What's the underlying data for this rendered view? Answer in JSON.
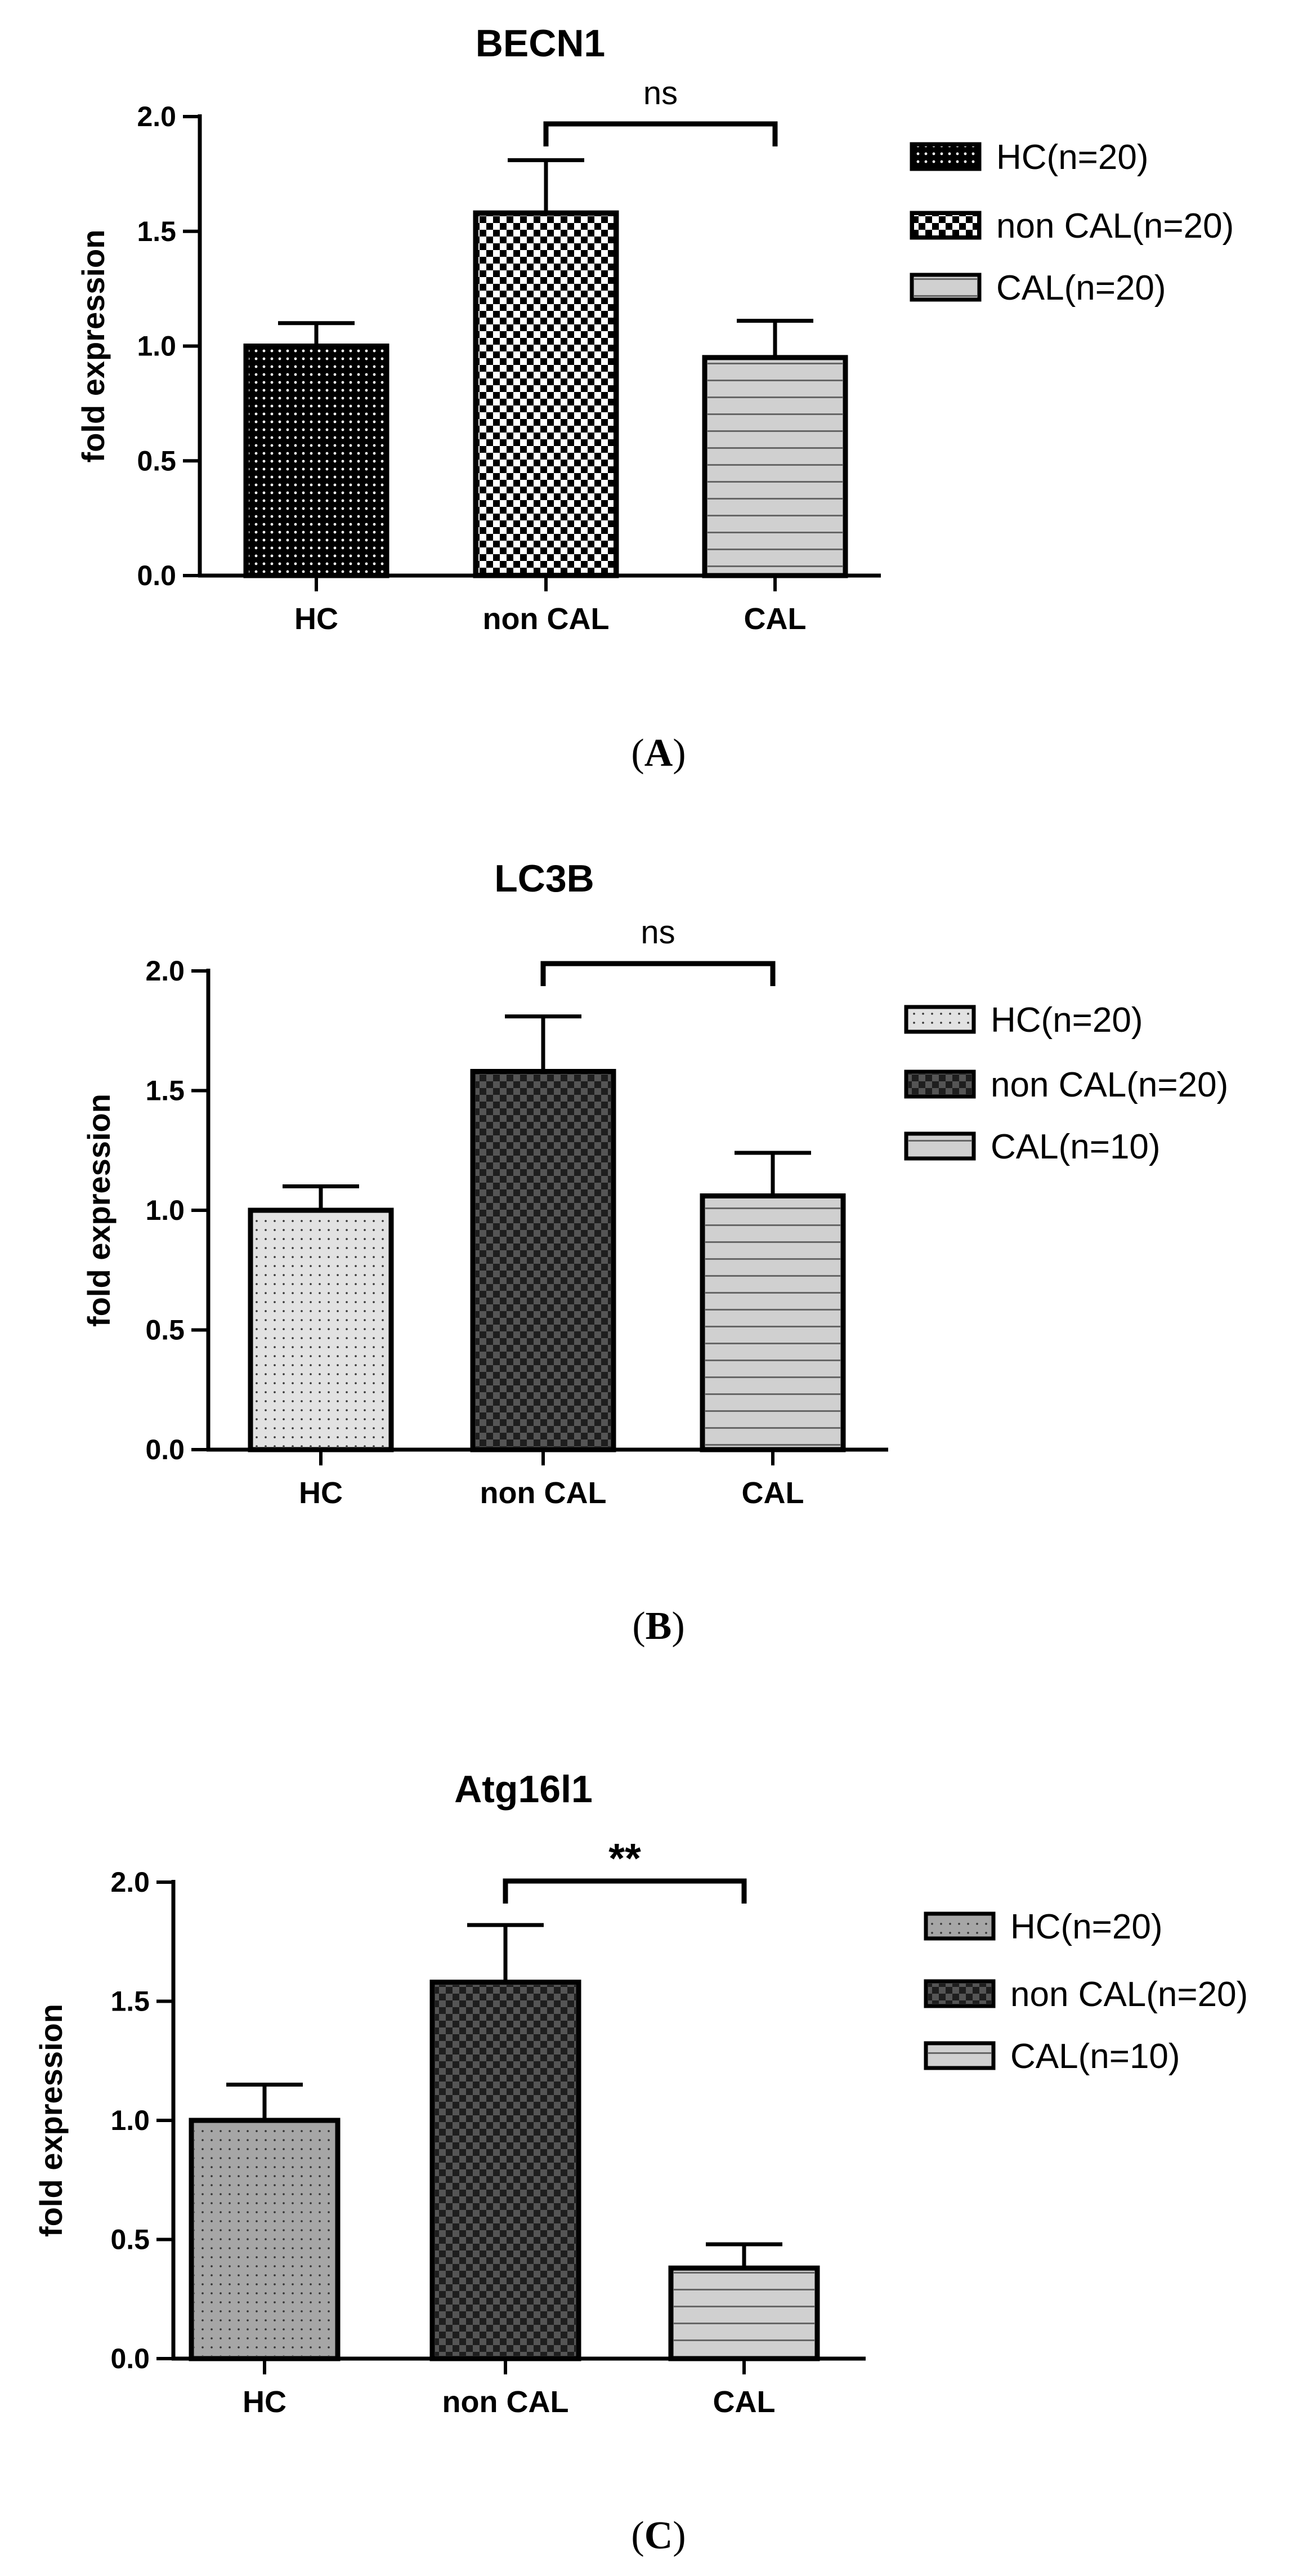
{
  "chart_data": [
    {
      "type": "bar",
      "title": "BECN1",
      "panel_label": "A",
      "ylabel": "fold expression",
      "ylim": [
        0,
        2.0
      ],
      "yticks": [
        "0.0",
        "0.5",
        "1.0",
        "1.5",
        "2.0"
      ],
      "categories": [
        "HC",
        "non CAL",
        "CAL"
      ],
      "values": [
        1.0,
        1.58,
        0.95
      ],
      "errors": [
        0.1,
        0.23,
        0.16
      ],
      "legend": [
        "HC(n=20)",
        "non CAL(n=20)",
        "CAL(n=20)"
      ],
      "legend_position": "right",
      "significance": {
        "from": "non CAL",
        "to": "CAL",
        "label": "ns"
      },
      "bar_fills": [
        "#000000",
        "#000000",
        "#d0d0d0"
      ],
      "bar_patterns": [
        "dots",
        "checker",
        "hlines"
      ]
    },
    {
      "type": "bar",
      "title": "LC3B",
      "panel_label": "B",
      "ylabel": "fold expression",
      "ylim": [
        0,
        2.0
      ],
      "yticks": [
        "0.0",
        "0.5",
        "1.0",
        "1.5",
        "2.0"
      ],
      "categories": [
        "HC",
        "non CAL",
        "CAL"
      ],
      "values": [
        1.0,
        1.58,
        1.06
      ],
      "errors": [
        0.1,
        0.23,
        0.18
      ],
      "legend": [
        "HC(n=20)",
        "non CAL(n=20)",
        "CAL(n=10)"
      ],
      "legend_position": "right",
      "significance": {
        "from": "non CAL",
        "to": "CAL",
        "label": "ns"
      },
      "bar_fills": [
        "#e2e2e2",
        "#555555",
        "#d0d0d0"
      ],
      "bar_patterns": [
        "dots",
        "checker",
        "hlines"
      ]
    },
    {
      "type": "bar",
      "title": "Atg16l1",
      "panel_label": "C",
      "ylabel": "fold expression",
      "ylim": [
        0,
        2.0
      ],
      "yticks": [
        "0.0",
        "0.5",
        "1.0",
        "1.5",
        "2.0"
      ],
      "categories": [
        "HC",
        "non CAL",
        "CAL"
      ],
      "values": [
        1.0,
        1.58,
        0.38
      ],
      "errors": [
        0.15,
        0.24,
        0.1
      ],
      "legend": [
        "HC(n=20)",
        "non CAL(n=20)",
        "CAL(n=10)"
      ],
      "legend_position": "right",
      "significance": {
        "from": "non CAL",
        "to": "CAL",
        "label": "**"
      },
      "bar_fills": [
        "#a6a6a6",
        "#555555",
        "#d0d0d0"
      ],
      "bar_patterns": [
        "dots",
        "checker",
        "hlines"
      ]
    }
  ]
}
